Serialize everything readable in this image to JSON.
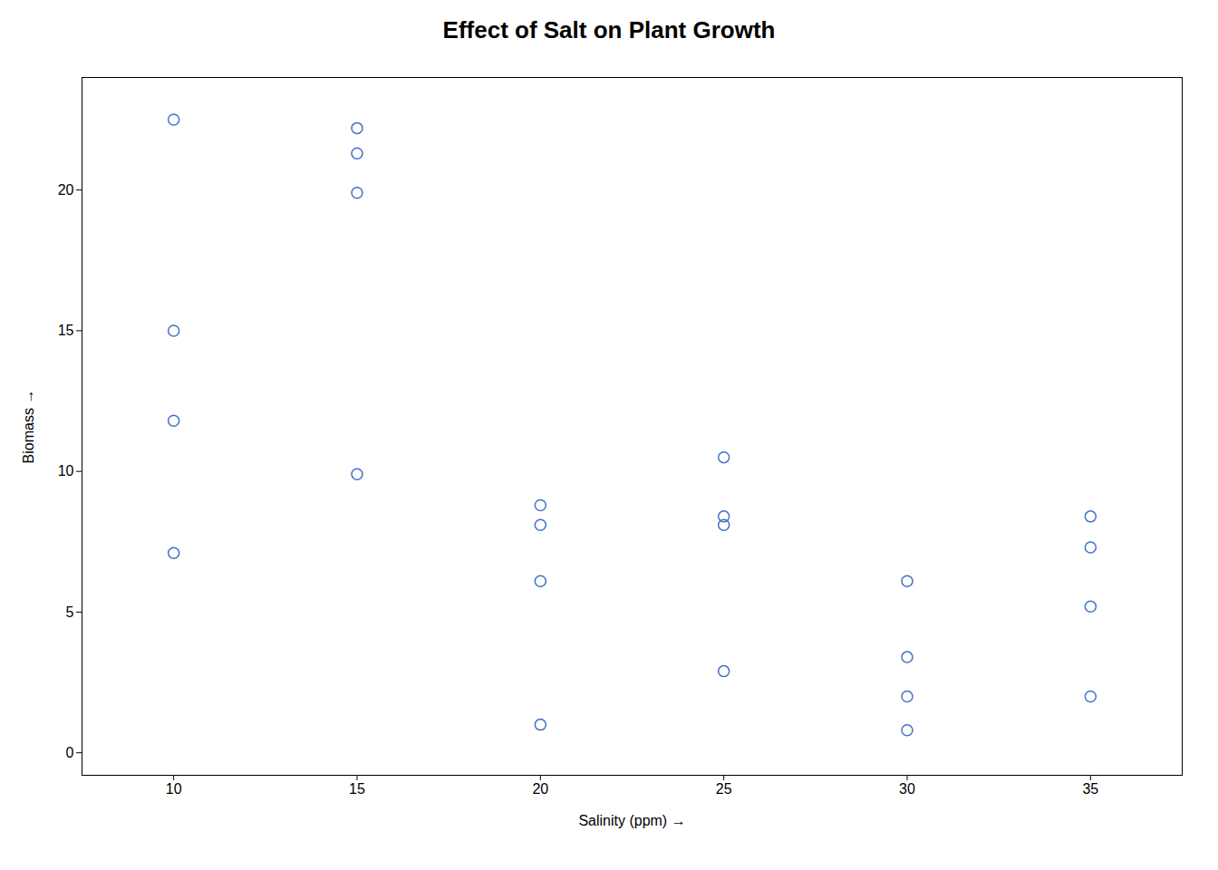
{
  "chart_data": {
    "type": "scatter",
    "title": "Effect of Salt on Plant Growth",
    "xlabel": "Salinity (ppm)",
    "ylabel": "Biomass",
    "x": [
      10,
      10,
      10,
      10,
      15,
      15,
      15,
      15,
      20,
      20,
      20,
      20,
      25,
      25,
      25,
      25,
      30,
      30,
      30,
      30,
      35,
      35,
      35,
      35
    ],
    "y": [
      22.5,
      15.0,
      11.8,
      7.1,
      22.2,
      21.3,
      19.9,
      9.9,
      8.8,
      8.1,
      6.1,
      1.0,
      10.5,
      8.4,
      8.1,
      2.9,
      6.1,
      3.4,
      2.0,
      0.8,
      8.4,
      7.3,
      5.2,
      2.0
    ],
    "color": "#4472C4",
    "xlim": [
      7.5,
      37.5
    ],
    "ylim": [
      -0.8,
      24
    ],
    "xticks": [
      10,
      15,
      20,
      25,
      30,
      35
    ],
    "yticks": [
      0,
      5,
      10,
      15,
      20
    ],
    "grid": false
  }
}
